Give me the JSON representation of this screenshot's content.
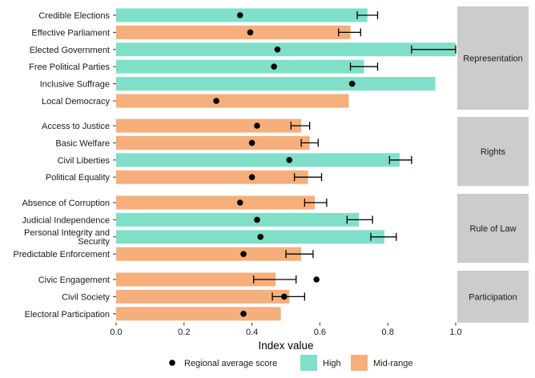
{
  "chart_data": {
    "type": "bar",
    "orientation": "horizontal",
    "xlabel": "Index value",
    "xlim": [
      0,
      1
    ],
    "x_ticks": [
      "0.0",
      "0.2",
      "0.4",
      "0.6",
      "0.8",
      "1.0"
    ],
    "colors": {
      "High": "#7fdfc8",
      "Mid-range": "#f6ae7a",
      "point": "#000000",
      "strip": "#cccccc"
    },
    "legend": {
      "position": "bottom",
      "items": [
        {
          "label": "Regional average score",
          "kind": "point"
        },
        {
          "label": "High",
          "kind": "fill",
          "color_key": "High"
        },
        {
          "label": "Mid-range",
          "kind": "fill",
          "color_key": "Mid-range"
        }
      ]
    },
    "facets": [
      {
        "name": "Representation",
        "rows": [
          {
            "label": "Credible Elections",
            "value": 0.74,
            "level": "High",
            "avg": 0.365,
            "err": [
              0.71,
              0.77
            ]
          },
          {
            "label": "Effective Parliament",
            "value": 0.69,
            "level": "Mid-range",
            "avg": 0.395,
            "err": [
              0.655,
              0.72
            ]
          },
          {
            "label": "Elected Government",
            "value": 1.0,
            "level": "High",
            "avg": 0.475,
            "err": [
              0.87,
              1.0
            ]
          },
          {
            "label": "Free Political Parties",
            "value": 0.73,
            "level": "High",
            "avg": 0.465,
            "err": [
              0.69,
              0.77
            ]
          },
          {
            "label": "Inclusive Suffrage",
            "value": 0.94,
            "level": "High",
            "avg": 0.695,
            "err": null
          },
          {
            "label": "Local Democracy",
            "value": 0.685,
            "level": "Mid-range",
            "avg": 0.295,
            "err": null
          }
        ]
      },
      {
        "name": "Rights",
        "rows": [
          {
            "label": "Access to Justice",
            "value": 0.545,
            "level": "Mid-range",
            "avg": 0.415,
            "err": [
              0.515,
              0.57
            ]
          },
          {
            "label": "Basic Welfare",
            "value": 0.57,
            "level": "Mid-range",
            "avg": 0.4,
            "err": [
              0.545,
              0.595
            ]
          },
          {
            "label": "Civil Liberties",
            "value": 0.835,
            "level": "High",
            "avg": 0.51,
            "err": [
              0.805,
              0.87
            ]
          },
          {
            "label": "Political Equality",
            "value": 0.565,
            "level": "Mid-range",
            "avg": 0.4,
            "err": [
              0.525,
              0.605
            ]
          }
        ]
      },
      {
        "name": "Rule of Law",
        "rows": [
          {
            "label": "Absence of Corruption",
            "value": 0.585,
            "level": "Mid-range",
            "avg": 0.365,
            "err": [
              0.555,
              0.62
            ]
          },
          {
            "label": "Judicial Independence",
            "value": 0.715,
            "level": "High",
            "avg": 0.415,
            "err": [
              0.68,
              0.755
            ]
          },
          {
            "label": "Personal Integrity and Security",
            "label_lines": [
              "Personal Integrity and",
              "Security"
            ],
            "value": 0.79,
            "level": "High",
            "avg": 0.425,
            "err": [
              0.75,
              0.825
            ]
          },
          {
            "label": "Predictable Enforcement",
            "value": 0.545,
            "level": "Mid-range",
            "avg": 0.375,
            "err": [
              0.5,
              0.58
            ]
          }
        ]
      },
      {
        "name": "Participation",
        "rows": [
          {
            "label": "Civic Engagement",
            "value": 0.47,
            "level": "Mid-range",
            "avg": 0.59,
            "err": [
              0.405,
              0.53
            ]
          },
          {
            "label": "Civil Society",
            "value": 0.51,
            "level": "Mid-range",
            "avg": 0.495,
            "err": [
              0.46,
              0.555
            ]
          },
          {
            "label": "Electoral Participation",
            "value": 0.485,
            "level": "Mid-range",
            "avg": 0.375,
            "err": null
          }
        ]
      }
    ]
  }
}
